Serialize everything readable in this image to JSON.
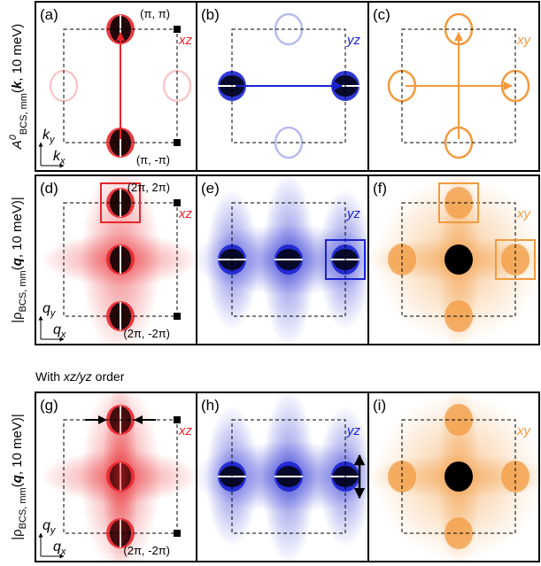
{
  "rows": [
    {
      "ylabel": {
        "pre": "A",
        "sup": "0",
        "sub": "BCS, mm",
        "open": "(",
        "var": "k",
        "post": ", 10 meV)"
      },
      "panels": [
        {
          "label": "(a)",
          "orbital": "xz",
          "color": "#e8252b",
          "corner_top": "(π, π)",
          "corner_bottom": "(π, -π)",
          "axis_y": [
            "k",
            "y"
          ],
          "axis_x": [
            "k",
            "x"
          ]
        },
        {
          "label": "(b)",
          "orbital": "yz",
          "color": "#1a22d0"
        },
        {
          "label": "(c)",
          "orbital": "xy",
          "color": "#f29a3e"
        }
      ]
    },
    {
      "ylabel": {
        "pre": "|ρ",
        "sub": "BCS, mm",
        "open": "(",
        "var": "q",
        "post": ", 10 meV)|"
      },
      "panels": [
        {
          "label": "(d)",
          "orbital": "xz",
          "color": "#e8252b",
          "corner_top": "(2π, 2π)",
          "corner_bottom": "(2π, -2π)",
          "axis_y": [
            "q",
            "y"
          ],
          "axis_x": [
            "q",
            "x"
          ]
        },
        {
          "label": "(e)",
          "orbital": "yz",
          "color": "#1a22d0"
        },
        {
          "label": "(f)",
          "orbital": "xy",
          "color": "#f29a3e"
        }
      ]
    },
    {
      "ylabel": {
        "pre": "|ρ",
        "sub": "BCS, mm",
        "open": "(",
        "var": "q",
        "post": ", 10 meV)|"
      },
      "panels": [
        {
          "label": "(g)",
          "orbital": "xz",
          "color": "#e8252b",
          "corner_bottom": "(2π, -2π)",
          "axis_y": [
            "q",
            "y"
          ],
          "axis_x": [
            "q",
            "x"
          ]
        },
        {
          "label": "(h)",
          "orbital": "yz",
          "color": "#1a22d0"
        },
        {
          "label": "(i)",
          "orbital": "xy",
          "color": "#f29a3e"
        }
      ]
    }
  ],
  "note": {
    "pre": "With ",
    "em": "xz/yz",
    "post": " order"
  }
}
